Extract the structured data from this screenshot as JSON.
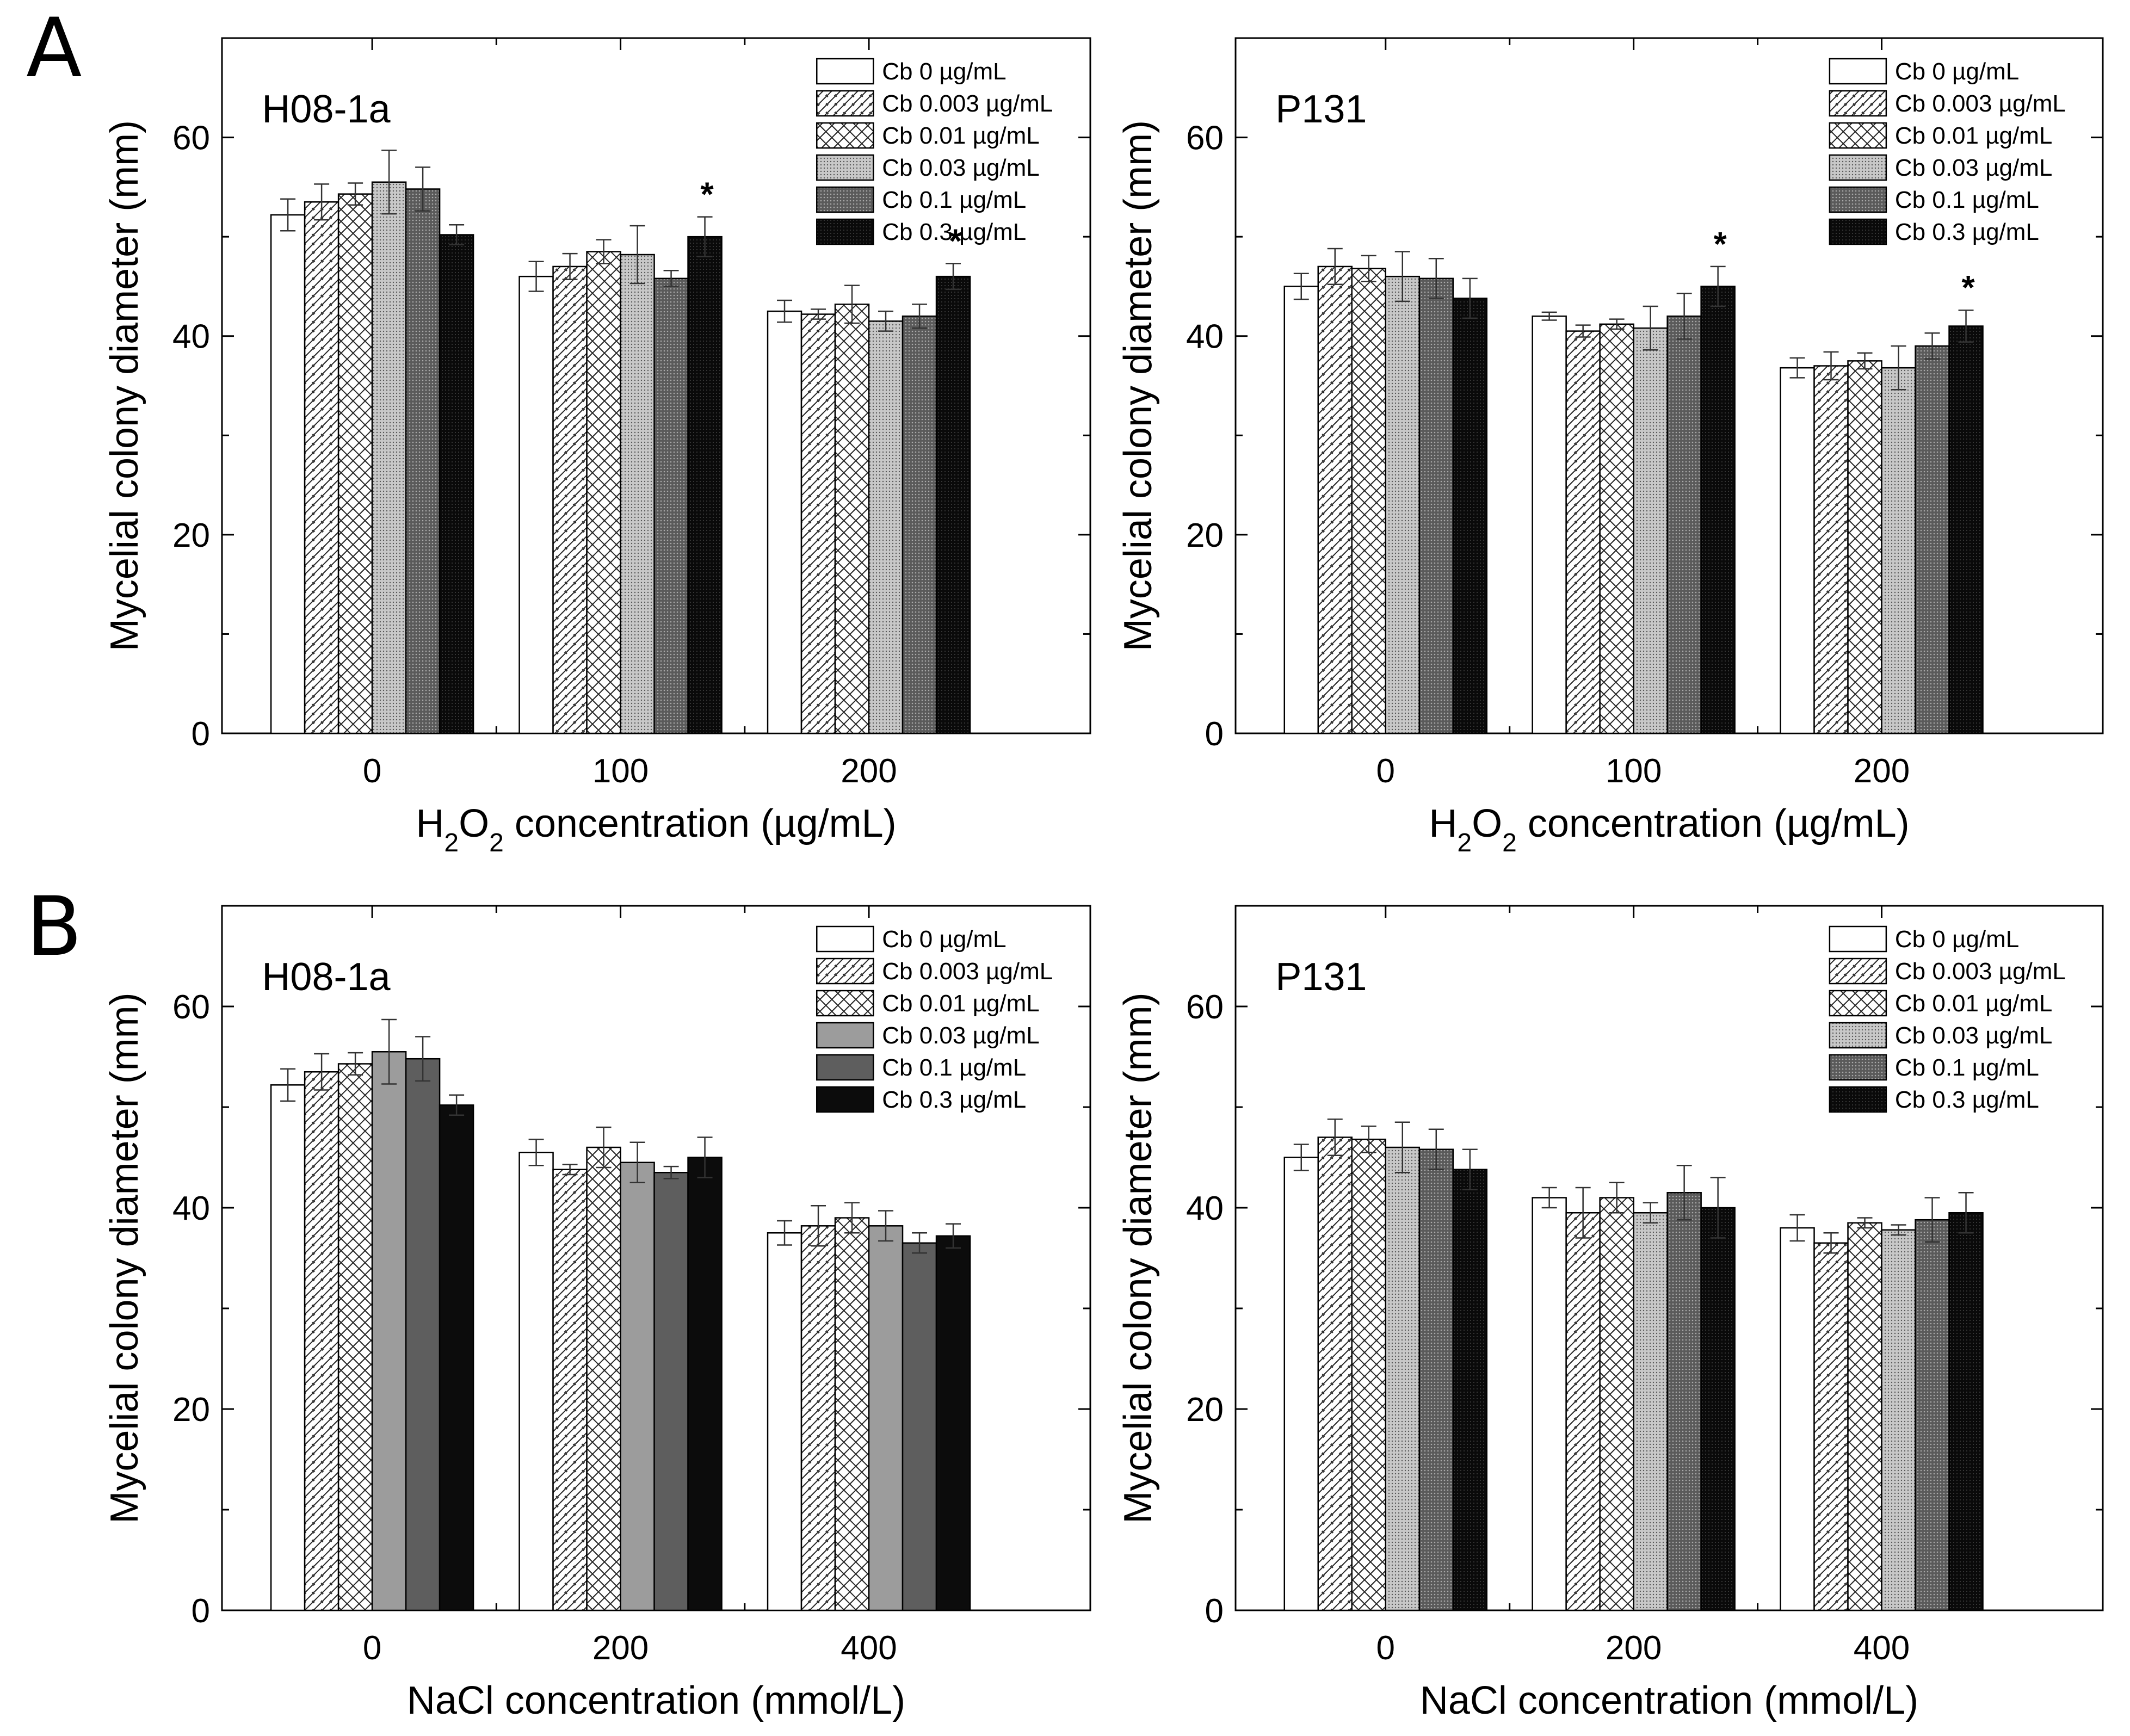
{
  "figure": {
    "panel_labels": [
      "A",
      "B"
    ]
  },
  "legend_entries": [
    {
      "label": "Cb 0 µg/mL"
    },
    {
      "label": "Cb 0.003 µg/mL"
    },
    {
      "label": "Cb 0.01 µg/mL"
    },
    {
      "label": "Cb 0.03 µg/mL"
    },
    {
      "label": "Cb 0.1 µg/mL"
    },
    {
      "label": "Cb 0.3 µg/mL"
    }
  ],
  "chart_data": [
    {
      "type": "bar",
      "panel": "A",
      "title": "H08-1a",
      "xlabel_parts": [
        "H",
        "2",
        "O",
        "2",
        " concentration (µg/mL)"
      ],
      "xlabel": "H2O2 concentration (µg/mL)",
      "ylabel": "Mycelial colony diameter (mm)",
      "categories": [
        "0",
        "100",
        "200"
      ],
      "ylim": [
        0,
        70
      ],
      "yticks": [
        "0",
        "20",
        "40",
        "60"
      ],
      "fill_style": "pattern",
      "series": [
        {
          "name": "Cb 0 µg/mL",
          "values": [
            52.2,
            46.0,
            42.5
          ],
          "errors": [
            1.6,
            1.5,
            1.1
          ]
        },
        {
          "name": "Cb 0.003 µg/mL",
          "values": [
            53.5,
            47.0,
            42.2
          ],
          "errors": [
            1.8,
            1.3,
            0.5
          ]
        },
        {
          "name": "Cb 0.01 µg/mL",
          "values": [
            54.3,
            48.5,
            43.2
          ],
          "errors": [
            1.1,
            1.2,
            1.9
          ]
        },
        {
          "name": "Cb 0.03 µg/mL",
          "values": [
            55.5,
            48.2,
            41.5
          ],
          "errors": [
            3.2,
            2.9,
            1.0
          ]
        },
        {
          "name": "Cb 0.1 µg/mL",
          "values": [
            54.8,
            45.8,
            42.0
          ],
          "errors": [
            2.2,
            0.8,
            1.2
          ]
        },
        {
          "name": "Cb 0.3 µg/mL",
          "values": [
            50.2,
            50.0,
            46.0
          ],
          "errors": [
            1.0,
            2.0,
            1.3
          ]
        }
      ],
      "annotations": [
        {
          "text": "*",
          "category": "100",
          "series": "Cb 0.3 µg/mL"
        },
        {
          "text": "*",
          "category": "200",
          "series": "Cb 0.3 µg/mL"
        }
      ]
    },
    {
      "type": "bar",
      "panel": "A",
      "title": "P131",
      "xlabel_parts": [
        "H",
        "2",
        "O",
        "2",
        " concentration (µg/mL)"
      ],
      "xlabel": "H2O2 concentration (µg/mL)",
      "ylabel": "Mycelial colony diameter (mm)",
      "categories": [
        "0",
        "100",
        "200"
      ],
      "ylim": [
        0,
        70
      ],
      "yticks": [
        "0",
        "20",
        "40",
        "60"
      ],
      "fill_style": "pattern",
      "series": [
        {
          "name": "Cb 0 µg/mL",
          "values": [
            45.0,
            42.0,
            36.8
          ],
          "errors": [
            1.3,
            0.4,
            1.0
          ]
        },
        {
          "name": "Cb 0.003 µg/mL",
          "values": [
            47.0,
            40.5,
            37.0
          ],
          "errors": [
            1.8,
            0.6,
            1.4
          ]
        },
        {
          "name": "Cb 0.01 µg/mL",
          "values": [
            46.8,
            41.2,
            37.5
          ],
          "errors": [
            1.3,
            0.5,
            0.8
          ]
        },
        {
          "name": "Cb 0.03 µg/mL",
          "values": [
            46.0,
            40.8,
            36.8
          ],
          "errors": [
            2.5,
            2.2,
            2.2
          ]
        },
        {
          "name": "Cb 0.1 µg/mL",
          "values": [
            45.8,
            42.0,
            39.0
          ],
          "errors": [
            2.0,
            2.3,
            1.3
          ]
        },
        {
          "name": "Cb 0.3 µg/mL",
          "values": [
            43.8,
            45.0,
            41.0
          ],
          "errors": [
            2.0,
            2.0,
            1.6
          ]
        }
      ],
      "annotations": [
        {
          "text": "*",
          "category": "100",
          "series": "Cb 0.3 µg/mL"
        },
        {
          "text": "*",
          "category": "200",
          "series": "Cb 0.3 µg/mL"
        }
      ]
    },
    {
      "type": "bar",
      "panel": "B",
      "title": "H08-1a",
      "xlabel_parts": [
        "NaCl concentration (mmol/L)"
      ],
      "xlabel": "NaCl concentration (mmol/L)",
      "ylabel": "Mycelial colony diameter (mm)",
      "categories": [
        "0",
        "200",
        "400"
      ],
      "ylim": [
        0,
        70
      ],
      "yticks": [
        "0",
        "20",
        "40",
        "60"
      ],
      "fill_style": "gray",
      "series": [
        {
          "name": "Cb 0 µg/mL",
          "values": [
            52.2,
            45.5,
            37.5
          ],
          "errors": [
            1.6,
            1.3,
            1.2
          ]
        },
        {
          "name": "Cb 0.003 µg/mL",
          "values": [
            53.5,
            43.8,
            38.2
          ],
          "errors": [
            1.8,
            0.5,
            2.0
          ]
        },
        {
          "name": "Cb 0.01 µg/mL",
          "values": [
            54.3,
            46.0,
            39.0
          ],
          "errors": [
            1.1,
            2.0,
            1.5
          ]
        },
        {
          "name": "Cb 0.03 µg/mL",
          "values": [
            55.5,
            44.5,
            38.2
          ],
          "errors": [
            3.2,
            2.0,
            1.5
          ]
        },
        {
          "name": "Cb 0.1 µg/mL",
          "values": [
            54.8,
            43.5,
            36.5
          ],
          "errors": [
            2.2,
            0.6,
            1.0
          ]
        },
        {
          "name": "Cb 0.3 µg/mL",
          "values": [
            50.2,
            45.0,
            37.2
          ],
          "errors": [
            1.0,
            2.0,
            1.2
          ]
        }
      ],
      "annotations": []
    },
    {
      "type": "bar",
      "panel": "B",
      "title": "P131",
      "xlabel_parts": [
        "NaCl concentration (mmol/L)"
      ],
      "xlabel": "NaCl concentration (mmol/L)",
      "ylabel": "Mycelial colony diameter (mm)",
      "categories": [
        "0",
        "200",
        "400"
      ],
      "ylim": [
        0,
        70
      ],
      "yticks": [
        "0",
        "20",
        "40",
        "60"
      ],
      "fill_style": "pattern",
      "series": [
        {
          "name": "Cb 0 µg/mL",
          "values": [
            45.0,
            41.0,
            38.0
          ],
          "errors": [
            1.3,
            1.0,
            1.3
          ]
        },
        {
          "name": "Cb 0.003 µg/mL",
          "values": [
            47.0,
            39.5,
            36.5
          ],
          "errors": [
            1.8,
            2.5,
            1.0
          ]
        },
        {
          "name": "Cb 0.01 µg/mL",
          "values": [
            46.8,
            41.0,
            38.5
          ],
          "errors": [
            1.3,
            1.5,
            0.5
          ]
        },
        {
          "name": "Cb 0.03 µg/mL",
          "values": [
            46.0,
            39.5,
            37.8
          ],
          "errors": [
            2.5,
            1.0,
            0.5
          ]
        },
        {
          "name": "Cb 0.1 µg/mL",
          "values": [
            45.8,
            41.5,
            38.8
          ],
          "errors": [
            2.0,
            2.7,
            2.2
          ]
        },
        {
          "name": "Cb 0.3 µg/mL",
          "values": [
            43.8,
            40.0,
            39.5
          ],
          "errors": [
            2.0,
            3.0,
            2.0
          ]
        }
      ],
      "annotations": []
    }
  ]
}
